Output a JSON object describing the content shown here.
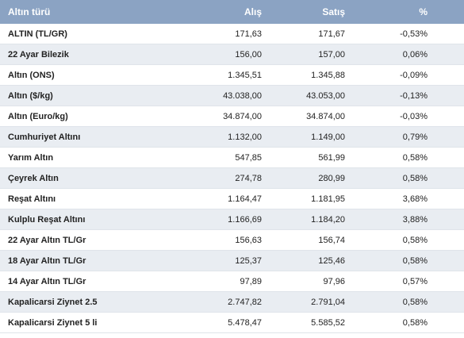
{
  "table": {
    "header": [
      "Altın türü",
      "Alış",
      "Satış",
      "%"
    ],
    "rows": [
      [
        "ALTIN (TL/GR)",
        "171,63",
        "171,67",
        "-0,53%"
      ],
      [
        "22 Ayar Bilezik",
        "156,00",
        "157,00",
        "0,06%"
      ],
      [
        "Altın (ONS)",
        "1.345,51",
        "1.345,88",
        "-0,09%"
      ],
      [
        "Altın ($/kg)",
        "43.038,00",
        "43.053,00",
        "-0,13%"
      ],
      [
        "Altın (Euro/kg)",
        "34.874,00",
        "34.874,00",
        "-0,03%"
      ],
      [
        "Cumhuriyet Altını",
        "1.132,00",
        "1.149,00",
        "0,79%"
      ],
      [
        "Yarım Altın",
        "547,85",
        "561,99",
        "0,58%"
      ],
      [
        "Çeyrek Altın",
        "274,78",
        "280,99",
        "0,58%"
      ],
      [
        "Reşat Altını",
        "1.164,47",
        "1.181,95",
        "3,68%"
      ],
      [
        "Kulplu Reşat Altını",
        "1.166,69",
        "1.184,20",
        "3,88%"
      ],
      [
        "22 Ayar Altın TL/Gr",
        "156,63",
        "156,74",
        "0,58%"
      ],
      [
        "18 Ayar Altın TL/Gr",
        "125,37",
        "125,46",
        "0,58%"
      ],
      [
        "14 Ayar Altın TL/Gr",
        "97,89",
        "97,96",
        "0,57%"
      ],
      [
        "Kapalicarsi Ziynet 2.5",
        "2.747,82",
        "2.791,04",
        "0,58%"
      ],
      [
        "Kapalicarsi Ziynet 5 li",
        "5.478,47",
        "5.585,52",
        "0,58%"
      ]
    ]
  }
}
